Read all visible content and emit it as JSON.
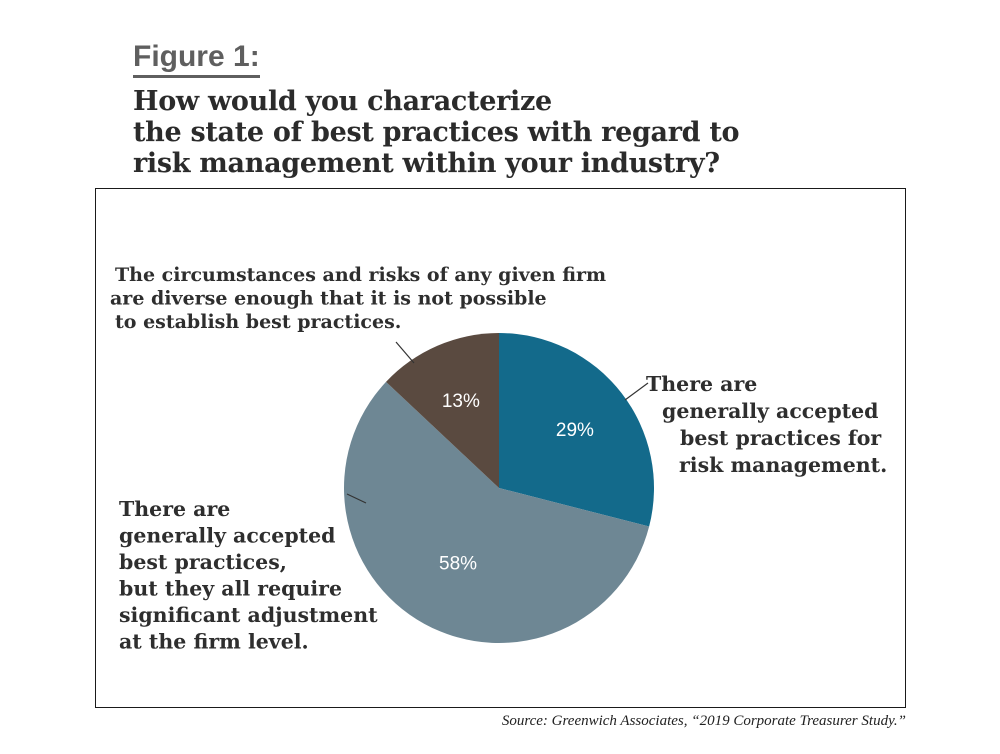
{
  "figure_label": "Figure 1:",
  "question_lines": [
    "How would you characterize",
    "the state of best practices with regard to",
    "risk management within your industry?"
  ],
  "source": "Source: Greenwich Associates, “2019 Corporate Treasurer Study.”",
  "colors": {
    "slice_accepted": "#136a8b",
    "slice_adjust": "#6e8794",
    "slice_not_possible": "#5a4a40",
    "label_text": "#2e2e2e",
    "pct_text": "#ffffff"
  },
  "chart_data": {
    "type": "pie",
    "slices": [
      {
        "value": 29,
        "display": "29%",
        "label_lines": [
          "There are",
          "generally accepted",
          "best practices for",
          "risk management."
        ],
        "color": "#136a8b"
      },
      {
        "value": 58,
        "display": "58%",
        "label_lines": [
          "There are",
          "generally accepted",
          "best practices,",
          "but they all require",
          "significant adjustment",
          "at the firm level."
        ],
        "color": "#6e8794"
      },
      {
        "value": 13,
        "display": "13%",
        "label_lines": [
          "The circumstances and risks of any given firm",
          "are diverse enough that it is not possible",
          "to establish best practices."
        ],
        "color": "#5a4a40"
      }
    ]
  }
}
